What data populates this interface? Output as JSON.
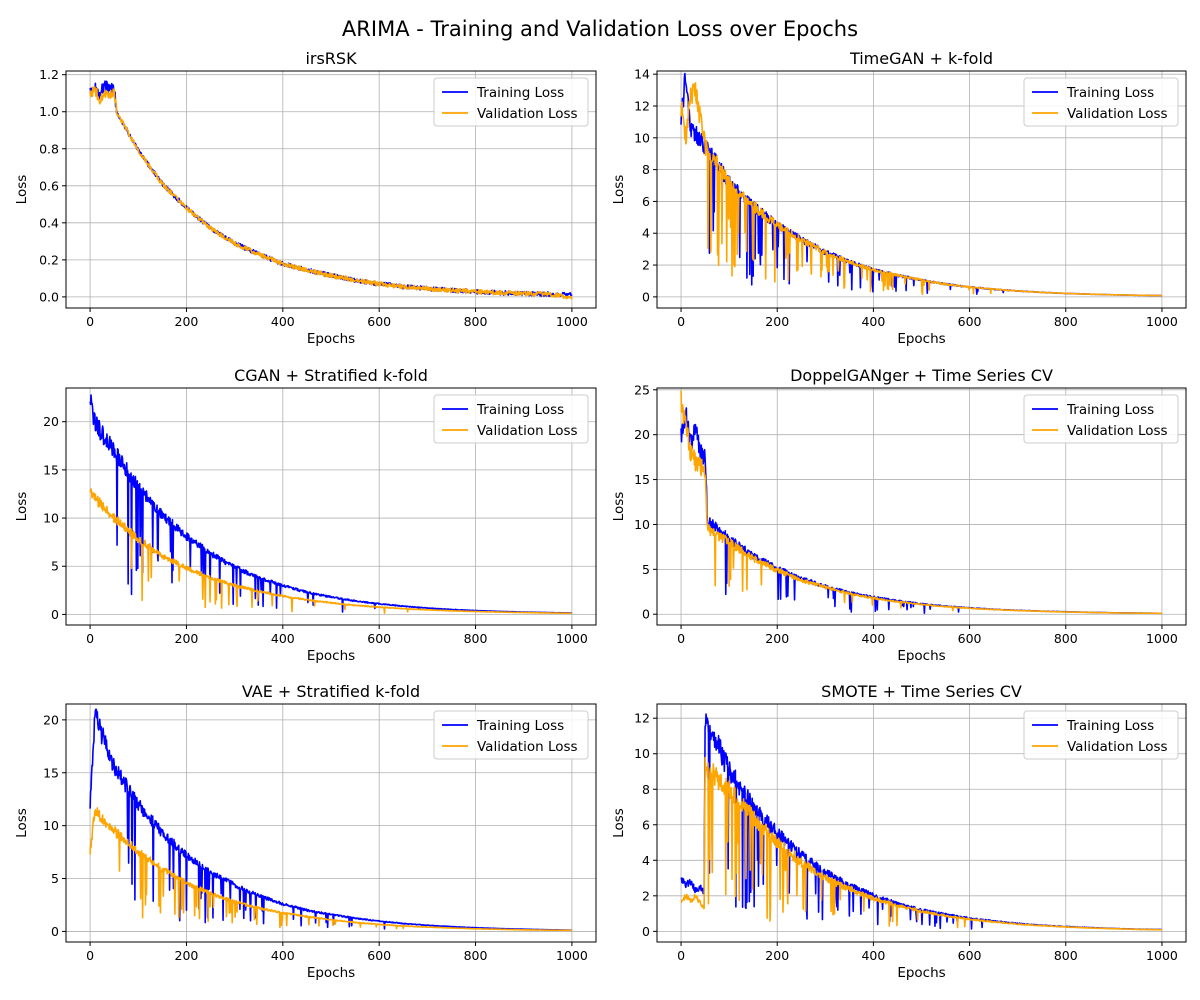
{
  "figure": {
    "title": "ARIMA - Training and Validation Loss over Epochs"
  },
  "colors": {
    "training": "#0000ff",
    "validation": "#ffa500",
    "grid": "#b0b0b0"
  },
  "chart_data": [
    {
      "type": "line",
      "title": "irsRSK",
      "xlabel": "Epochs",
      "ylabel": "Loss",
      "xlim": [
        -50,
        1050
      ],
      "ylim": [
        -0.06,
        1.22
      ],
      "xticks": [
        0,
        200,
        400,
        600,
        800,
        1000
      ],
      "yticks": [
        0.0,
        0.2,
        0.4,
        0.6,
        0.8,
        1.0,
        1.2
      ],
      "ytick_labels": [
        "0.0",
        "0.2",
        "0.4",
        "0.6",
        "0.8",
        "1.0",
        "1.2"
      ],
      "grid": true,
      "legend": "top-right",
      "series": [
        {
          "name": "Training Loss",
          "x": [
            0,
            10,
            20,
            30,
            40,
            50,
            55,
            100,
            150,
            200,
            250,
            300,
            350,
            400,
            450,
            500,
            550,
            600,
            650,
            700,
            750,
            800,
            850,
            900,
            950,
            1000
          ],
          "values": [
            1.1,
            1.13,
            1.09,
            1.15,
            1.12,
            1.13,
            1.0,
            0.79,
            0.61,
            0.48,
            0.37,
            0.29,
            0.23,
            0.18,
            0.145,
            0.115,
            0.09,
            0.07,
            0.055,
            0.045,
            0.035,
            0.028,
            0.022,
            0.018,
            0.015,
            0.01
          ]
        },
        {
          "name": "Validation Loss",
          "x": [
            0,
            10,
            20,
            30,
            40,
            50,
            55,
            100,
            150,
            200,
            250,
            300,
            350,
            400,
            450,
            500,
            550,
            600,
            650,
            700,
            750,
            800,
            850,
            900,
            950,
            1000
          ],
          "values": [
            1.08,
            1.12,
            1.06,
            1.1,
            1.08,
            1.1,
            1.0,
            0.79,
            0.61,
            0.48,
            0.37,
            0.29,
            0.23,
            0.18,
            0.145,
            0.115,
            0.09,
            0.07,
            0.055,
            0.045,
            0.035,
            0.028,
            0.022,
            0.018,
            0.015,
            -0.005
          ]
        }
      ]
    },
    {
      "type": "line",
      "title": "TimeGAN + k-fold",
      "xlabel": "Epochs",
      "ylabel": "Loss",
      "xlim": [
        -50,
        1050
      ],
      "ylim": [
        -0.7,
        14.2
      ],
      "xticks": [
        0,
        200,
        400,
        600,
        800,
        1000
      ],
      "yticks": [
        0,
        2,
        4,
        6,
        8,
        10,
        12,
        14
      ],
      "ytick_labels": [
        "0",
        "2",
        "4",
        "6",
        "8",
        "10",
        "12",
        "14"
      ],
      "grid": true,
      "legend": "top-right",
      "series": [
        {
          "name": "Training Loss",
          "x": [
            0,
            10,
            20,
            50,
            100,
            150,
            200,
            250,
            300,
            350,
            400,
            450,
            500,
            550,
            600,
            650,
            700,
            750,
            800,
            850,
            900,
            950,
            1000
          ],
          "values": [
            11.5,
            13.8,
            10.5,
            9.5,
            7.2,
            5.7,
            4.5,
            3.6,
            2.8,
            2.2,
            1.7,
            1.35,
            1.05,
            0.8,
            0.62,
            0.48,
            0.37,
            0.28,
            0.22,
            0.17,
            0.13,
            0.1,
            0.08
          ]
        },
        {
          "name": "Validation Loss",
          "x": [
            0,
            10,
            20,
            30,
            50,
            100,
            150,
            200,
            250,
            300,
            350,
            400,
            450,
            500,
            550,
            600,
            650,
            700,
            750,
            800,
            850,
            900,
            950,
            1000
          ],
          "values": [
            12.0,
            10.0,
            12.5,
            13.0,
            9.5,
            7.2,
            5.7,
            4.5,
            3.6,
            2.8,
            2.2,
            1.7,
            1.35,
            1.05,
            0.8,
            0.62,
            0.48,
            0.37,
            0.28,
            0.22,
            0.17,
            0.13,
            0.1,
            0.08
          ]
        }
      ]
    },
    {
      "type": "line",
      "title": "CGAN + Stratified k-fold",
      "xlabel": "Epochs",
      "ylabel": "Loss",
      "xlim": [
        -50,
        1050
      ],
      "ylim": [
        -1.1,
        23.5
      ],
      "xticks": [
        0,
        200,
        400,
        600,
        800,
        1000
      ],
      "yticks": [
        0,
        5,
        10,
        15,
        20
      ],
      "ytick_labels": [
        "0",
        "5",
        "10",
        "15",
        "20"
      ],
      "grid": true,
      "legend": "top-right",
      "series": [
        {
          "name": "Training Loss",
          "x": [
            0,
            10,
            50,
            100,
            150,
            200,
            250,
            300,
            350,
            400,
            450,
            500,
            550,
            600,
            650,
            700,
            750,
            800,
            850,
            900,
            950,
            1000
          ],
          "values": [
            22.3,
            19.8,
            17.0,
            13.2,
            10.3,
            8.1,
            6.3,
            4.9,
            3.8,
            3.0,
            2.3,
            1.8,
            1.4,
            1.1,
            0.85,
            0.66,
            0.51,
            0.4,
            0.31,
            0.24,
            0.19,
            0.15
          ]
        },
        {
          "name": "Validation Loss",
          "x": [
            0,
            10,
            50,
            100,
            150,
            200,
            250,
            300,
            350,
            400,
            450,
            500,
            550,
            600,
            650,
            700,
            750,
            800,
            850,
            900,
            950,
            1000
          ],
          "values": [
            13.0,
            12.0,
            10.0,
            7.8,
            6.1,
            4.8,
            3.8,
            3.0,
            2.4,
            1.9,
            1.5,
            1.2,
            0.95,
            0.75,
            0.6,
            0.47,
            0.37,
            0.3,
            0.24,
            0.19,
            0.15,
            0.12
          ]
        }
      ]
    },
    {
      "type": "line",
      "title": "DoppelGANger + Time Series CV",
      "xlabel": "Epochs",
      "ylabel": "Loss",
      "xlim": [
        -50,
        1050
      ],
      "ylim": [
        -1.2,
        25.2
      ],
      "xticks": [
        0,
        200,
        400,
        600,
        800,
        1000
      ],
      "yticks": [
        0,
        5,
        10,
        15,
        20,
        25
      ],
      "ytick_labels": [
        "0",
        "5",
        "10",
        "15",
        "20",
        "25"
      ],
      "grid": true,
      "legend": "top-right",
      "series": [
        {
          "name": "Training Loss",
          "x": [
            0,
            10,
            20,
            30,
            40,
            50,
            55,
            100,
            150,
            200,
            250,
            300,
            350,
            400,
            450,
            500,
            550,
            600,
            650,
            700,
            750,
            800,
            850,
            900,
            950,
            1000
          ],
          "values": [
            20.0,
            22.0,
            19.0,
            20.5,
            18.0,
            17.5,
            10.5,
            8.4,
            6.5,
            5.1,
            4.0,
            3.1,
            2.4,
            1.9,
            1.5,
            1.15,
            0.9,
            0.7,
            0.55,
            0.43,
            0.34,
            0.27,
            0.21,
            0.16,
            0.13,
            0.1
          ]
        },
        {
          "name": "Validation Loss",
          "x": [
            0,
            10,
            20,
            30,
            40,
            50,
            55,
            100,
            150,
            200,
            250,
            300,
            350,
            400,
            450,
            500,
            550,
            600,
            650,
            700,
            750,
            800,
            850,
            900,
            950,
            1000
          ],
          "values": [
            24.0,
            21.0,
            18.0,
            17.0,
            16.5,
            16.0,
            9.5,
            8.0,
            6.2,
            4.9,
            3.8,
            3.0,
            2.3,
            1.8,
            1.4,
            1.1,
            0.85,
            0.66,
            0.52,
            0.41,
            0.32,
            0.25,
            0.2,
            0.15,
            0.12,
            0.1
          ]
        }
      ]
    },
    {
      "type": "line",
      "title": "VAE + Stratified k-fold",
      "xlabel": "Epochs",
      "ylabel": "Loss",
      "xlim": [
        -50,
        1050
      ],
      "ylim": [
        -1.0,
        21.5
      ],
      "xticks": [
        0,
        200,
        400,
        600,
        800,
        1000
      ],
      "yticks": [
        0,
        5,
        10,
        15,
        20
      ],
      "ytick_labels": [
        "0",
        "5",
        "10",
        "15",
        "20"
      ],
      "grid": true,
      "legend": "top-right",
      "series": [
        {
          "name": "Training Loss",
          "x": [
            0,
            10,
            50,
            100,
            150,
            200,
            250,
            300,
            350,
            400,
            450,
            500,
            550,
            600,
            650,
            700,
            750,
            800,
            850,
            900,
            950,
            1000
          ],
          "values": [
            12.0,
            20.4,
            15.5,
            12.0,
            9.3,
            7.2,
            5.6,
            4.4,
            3.4,
            2.6,
            2.0,
            1.6,
            1.25,
            0.97,
            0.75,
            0.58,
            0.45,
            0.35,
            0.27,
            0.21,
            0.16,
            0.12
          ]
        },
        {
          "name": "Validation Loss",
          "x": [
            0,
            10,
            50,
            100,
            150,
            200,
            250,
            300,
            350,
            400,
            450,
            500,
            550,
            600,
            650,
            700,
            750,
            800,
            850,
            900,
            950,
            1000
          ],
          "values": [
            7.5,
            11.5,
            9.5,
            7.5,
            5.9,
            4.6,
            3.6,
            2.8,
            2.2,
            1.75,
            1.4,
            1.1,
            0.85,
            0.66,
            0.52,
            0.41,
            0.32,
            0.25,
            0.2,
            0.15,
            0.12,
            0.1
          ]
        }
      ]
    },
    {
      "type": "line",
      "title": "SMOTE + Time Series CV",
      "xlabel": "Epochs",
      "ylabel": "Loss",
      "xlim": [
        -50,
        1050
      ],
      "ylim": [
        -0.6,
        12.8
      ],
      "xticks": [
        0,
        200,
        400,
        600,
        800,
        1000
      ],
      "yticks": [
        0,
        2,
        4,
        6,
        8,
        10,
        12
      ],
      "ytick_labels": [
        "0",
        "2",
        "4",
        "6",
        "8",
        "10",
        "12"
      ],
      "grid": true,
      "legend": "top-right",
      "series": [
        {
          "name": "Training Loss",
          "x": [
            0,
            10,
            20,
            30,
            40,
            48,
            50,
            100,
            150,
            200,
            250,
            300,
            350,
            400,
            450,
            500,
            550,
            600,
            650,
            700,
            750,
            800,
            850,
            900,
            950,
            1000
          ],
          "values": [
            3.0,
            2.6,
            2.8,
            2.3,
            2.5,
            2.2,
            12.3,
            9.0,
            7.0,
            5.5,
            4.3,
            3.3,
            2.6,
            2.0,
            1.55,
            1.2,
            0.95,
            0.73,
            0.57,
            0.44,
            0.34,
            0.27,
            0.21,
            0.16,
            0.12,
            0.1
          ]
        },
        {
          "name": "Validation Loss",
          "x": [
            0,
            10,
            20,
            30,
            40,
            48,
            50,
            100,
            150,
            200,
            250,
            300,
            350,
            400,
            450,
            500,
            550,
            600,
            650,
            700,
            750,
            800,
            850,
            900,
            950,
            1000
          ],
          "values": [
            1.6,
            2.0,
            1.7,
            2.0,
            1.6,
            1.3,
            9.3,
            8.0,
            6.4,
            5.0,
            3.9,
            3.0,
            2.4,
            1.85,
            1.45,
            1.13,
            0.88,
            0.68,
            0.53,
            0.41,
            0.32,
            0.25,
            0.19,
            0.15,
            0.11,
            0.09
          ]
        }
      ]
    }
  ]
}
